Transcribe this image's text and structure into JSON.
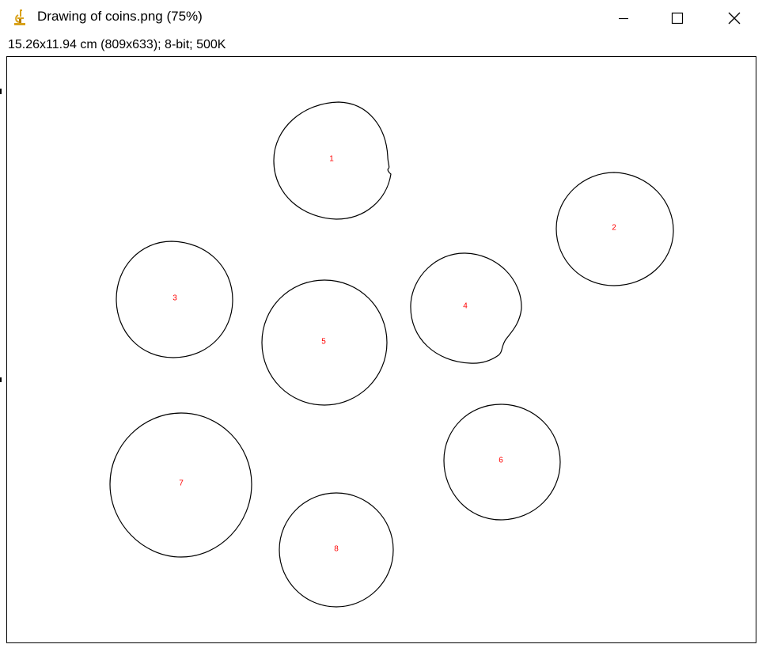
{
  "window": {
    "title": "Drawing of coins.png (75%)",
    "icon": "imagej-microscope-icon",
    "controls": {
      "minimize_icon": "minimize-icon",
      "maximize_icon": "maximize-icon",
      "close_icon": "close-icon"
    }
  },
  "image_info": {
    "text": "15.26x11.94 cm (809x633); 8-bit; 500K"
  },
  "colors": {
    "outline": "#000000",
    "label": "#ff0000",
    "icon_accent": "#d9a21b"
  },
  "coins": [
    {
      "label": "1"
    },
    {
      "label": "2"
    },
    {
      "label": "3"
    },
    {
      "label": "4"
    },
    {
      "label": "5"
    },
    {
      "label": "6"
    },
    {
      "label": "7"
    },
    {
      "label": "8"
    }
  ]
}
